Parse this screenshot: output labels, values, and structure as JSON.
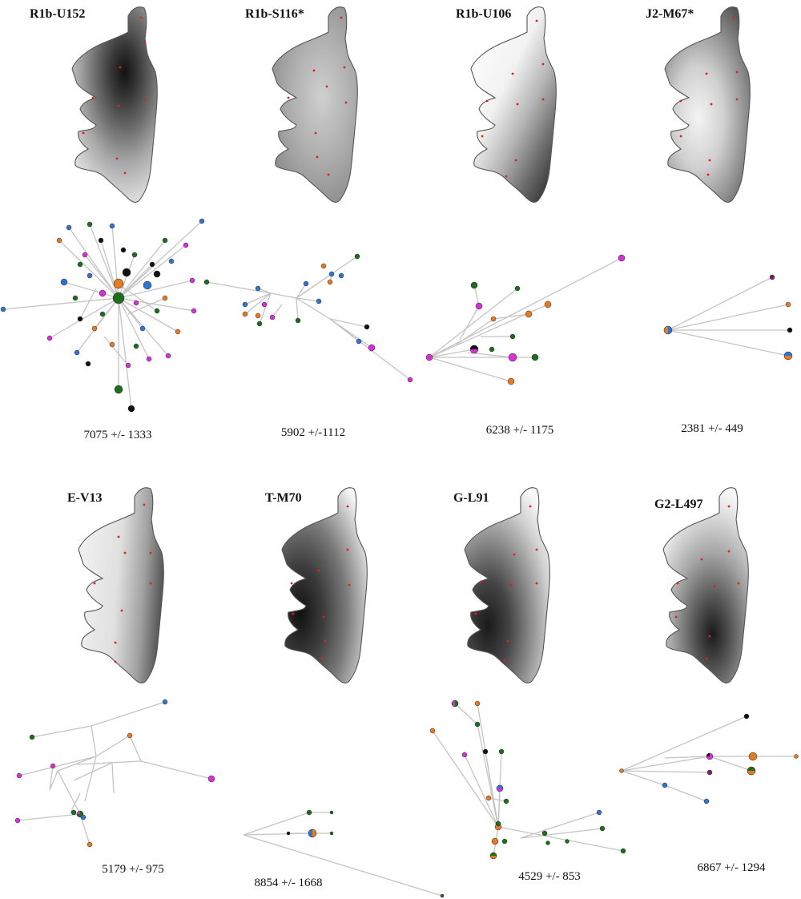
{
  "panels": [
    {
      "id": "r1b-u152",
      "label": "R1b-U152",
      "age": "7075 +/- 1333",
      "tone": "center-north"
    },
    {
      "id": "r1b-s116",
      "label": "R1b-S116*",
      "age": "5902 +/-1112",
      "tone": "uniform-mid"
    },
    {
      "id": "r1b-u106",
      "label": "R1b-U106",
      "age": "6238 +/- 1175",
      "tone": "south-east"
    },
    {
      "id": "j2-m67",
      "label": "J2-M67*",
      "age": "2381 +/- 449",
      "tone": "north-south-edges"
    },
    {
      "id": "e-v13",
      "label": "E-V13",
      "age": "5179 +/- 975",
      "tone": "east"
    },
    {
      "id": "t-m70",
      "label": "T-M70",
      "age": "8854 +/- 1668",
      "tone": "west-cape"
    },
    {
      "id": "g-l91",
      "label": "G-L91",
      "age": "4529 +/- 853",
      "tone": "south-west"
    },
    {
      "id": "g2-l497",
      "label": "G2-L497",
      "age": "6867 +/- 1294",
      "tone": "south-center"
    }
  ],
  "node_colors": {
    "black": "#111111",
    "blue": "#2f74d0",
    "green": "#1d6d1d",
    "magenta": "#d532d5",
    "orange": "#e57a25"
  }
}
